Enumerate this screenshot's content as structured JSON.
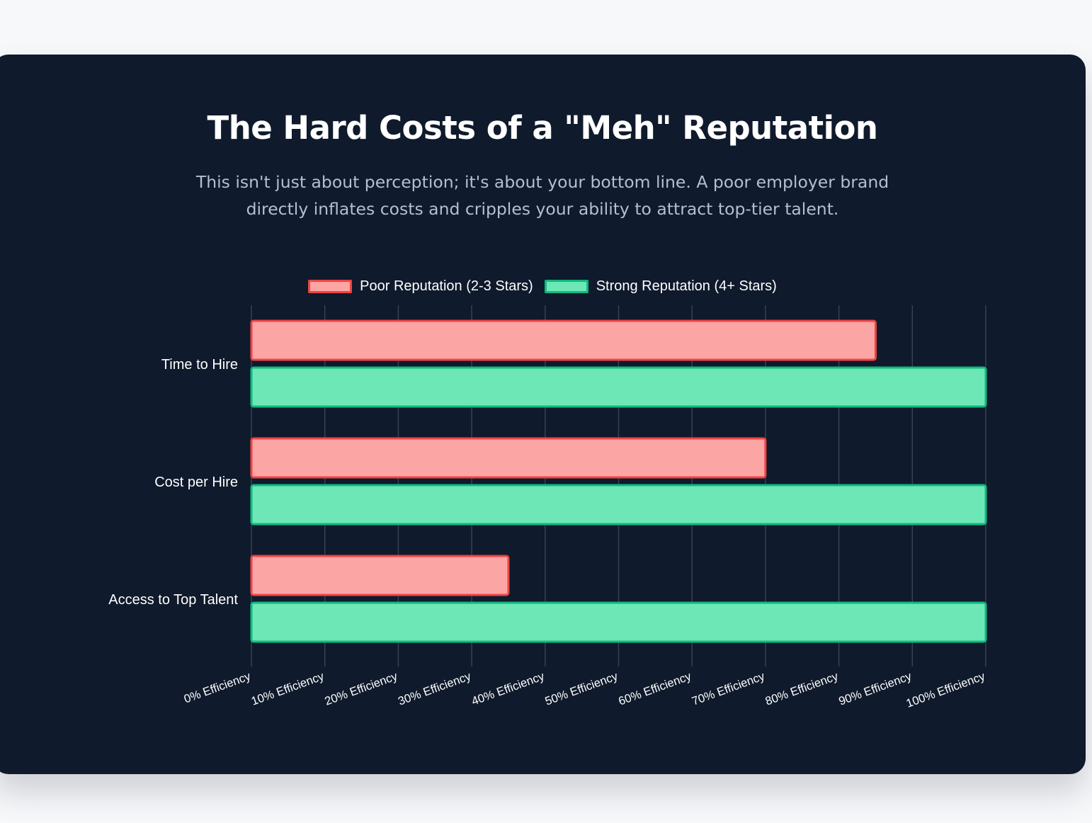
{
  "header": {
    "title": "The Hard Costs of a \"Meh\" Reputation",
    "subtitle": "This isn't just about perception; it's about your bottom line. A poor employer brand directly inflates costs and cripples your ability to attract top-tier talent."
  },
  "colors": {
    "poor_fill": "#fca5a5",
    "poor_border": "#ef4444",
    "strong_fill": "#6ee7b7",
    "strong_border": "#10b981",
    "grid": "#374151",
    "tick_text": "#ffffff"
  },
  "chart_data": {
    "type": "bar",
    "orientation": "horizontal",
    "categories": [
      "Time to Hire",
      "Cost per Hire",
      "Access to Top Talent"
    ],
    "series": [
      {
        "name": "Poor Reputation (2-3 Stars)",
        "values": [
          85,
          70,
          35
        ]
      },
      {
        "name": "Strong Reputation (4+ Stars)",
        "values": [
          100,
          100,
          100
        ]
      }
    ],
    "xlim": [
      0,
      100
    ],
    "x_ticks": [
      "0% Efficiency",
      "10% Efficiency",
      "20% Efficiency",
      "30% Efficiency",
      "40% Efficiency",
      "50% Efficiency",
      "60% Efficiency",
      "70% Efficiency",
      "80% Efficiency",
      "90% Efficiency",
      "100% Efficiency"
    ],
    "grid": true,
    "legend_position": "top"
  }
}
